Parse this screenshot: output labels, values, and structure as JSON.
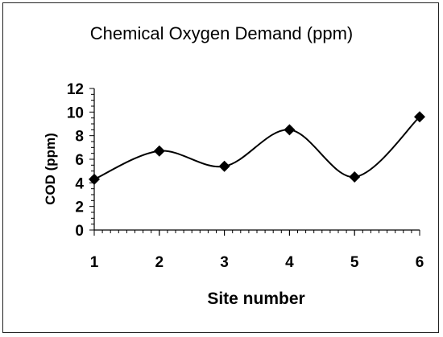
{
  "chart_data": {
    "type": "line",
    "title": "Chemical Oxygen Demand  (ppm)",
    "xlabel": "Site number",
    "ylabel": "COD (ppm)",
    "x": [
      1,
      2,
      3,
      4,
      5,
      6
    ],
    "x_tick_labels": [
      "1",
      "2",
      "3",
      "4",
      "5",
      "6"
    ],
    "y_tick_labels": [
      "0",
      "2",
      "4",
      "6",
      "8",
      "10",
      "12"
    ],
    "ylim": [
      0,
      12
    ],
    "series": [
      {
        "values": [
          4.3,
          6.7,
          5.4,
          8.5,
          4.5,
          9.6
        ],
        "marker": "diamond",
        "smooth": true
      }
    ],
    "grid": false,
    "colors": {
      "line": "#000000",
      "marker": "#000000",
      "axis": "#000000"
    }
  }
}
